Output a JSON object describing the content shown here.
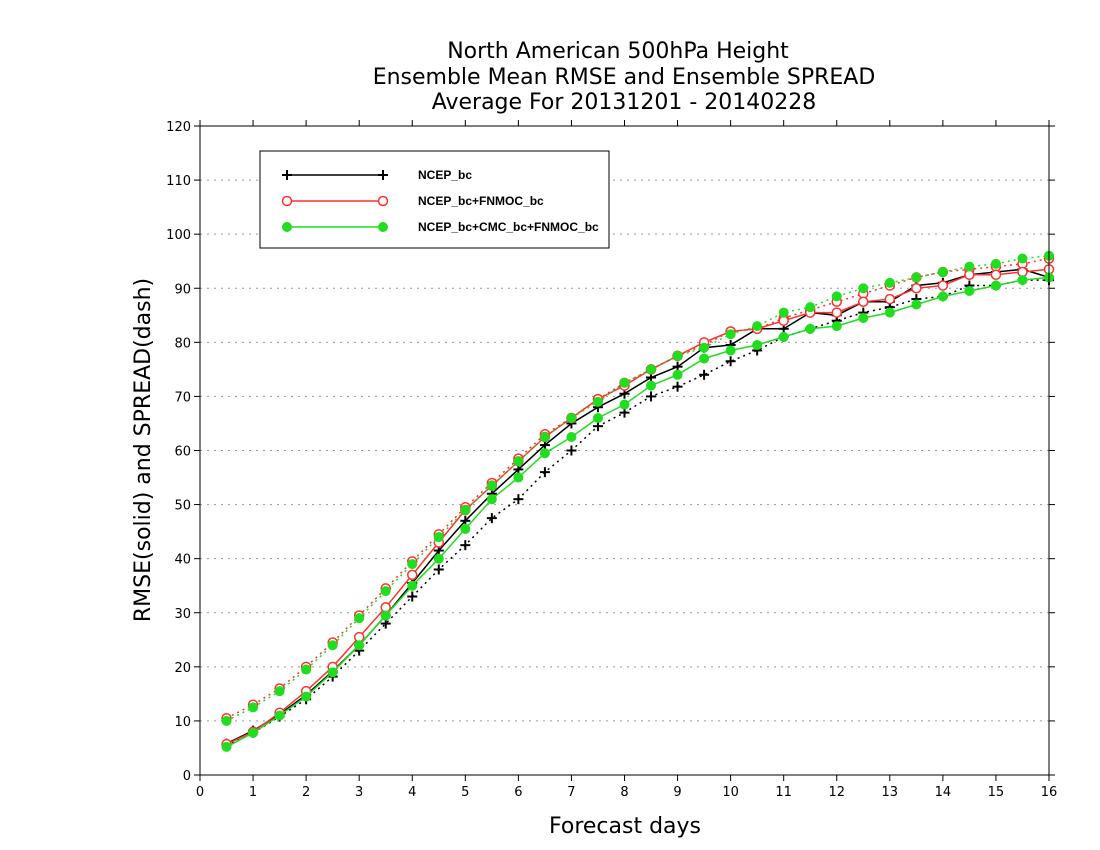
{
  "chart_data": {
    "type": "line",
    "title": [
      "North American 500hPa Height",
      "Ensemble Mean RMSE and Ensemble SPREAD",
      "Average For 20131201 - 20140228"
    ],
    "xlabel": "Forecast days",
    "ylabel": "RMSE(solid) and SPREAD(dash)",
    "xlim": [
      0,
      16
    ],
    "ylim": [
      0,
      120
    ],
    "xticks": [
      "0",
      "1",
      "2",
      "3",
      "4",
      "5",
      "6",
      "7",
      "8",
      "9",
      "10",
      "11",
      "12",
      "13",
      "14",
      "15",
      "16"
    ],
    "yticks": [
      "0",
      "10",
      "20",
      "30",
      "40",
      "50",
      "60",
      "70",
      "80",
      "90",
      "100",
      "110",
      "120"
    ],
    "grid": "horizontal dotted",
    "legend_position": "top-left",
    "x": [
      0.5,
      1,
      1.5,
      2,
      2.5,
      3,
      3.5,
      4,
      4.5,
      5,
      5.5,
      6,
      6.5,
      7,
      7.5,
      8,
      8.5,
      9,
      9.5,
      10,
      10.5,
      11,
      11.5,
      12,
      12.5,
      13,
      13.5,
      14,
      14.5,
      15,
      15.5,
      16
    ],
    "series": [
      {
        "name": "NCEP_bc",
        "color": "#000000",
        "marker": "plus",
        "rmse": [
          5.8,
          8.2,
          11.2,
          14.8,
          19.2,
          24.0,
          29.5,
          35.5,
          41.5,
          47.0,
          52.0,
          56.5,
          61.0,
          65.0,
          68.0,
          70.5,
          73.5,
          75.5,
          79.0,
          79.5,
          82.5,
          82.5,
          85.5,
          85.0,
          87.5,
          87.5,
          90.5,
          91.0,
          92.5,
          93.0,
          93.5,
          92.0
        ],
        "spread": [
          5.5,
          7.8,
          10.8,
          14.0,
          18.2,
          23.0,
          28.0,
          33.0,
          38.0,
          42.5,
          47.5,
          51.0,
          56.0,
          60.0,
          64.5,
          67.0,
          70.0,
          71.8,
          74.0,
          76.5,
          78.5,
          81.0,
          82.5,
          84.0,
          85.5,
          86.5,
          88.0,
          88.5,
          90.5,
          90.5,
          91.5,
          91.5
        ]
      },
      {
        "name": "NCEP_bc+FNMOC_bc",
        "color": "#ff3030",
        "marker": "open-circle",
        "rmse": [
          5.7,
          8.0,
          11.5,
          15.5,
          20.0,
          25.5,
          31.0,
          37.0,
          43.0,
          49.0,
          53.5,
          58.0,
          62.5,
          66.0,
          69.5,
          72.0,
          75.0,
          77.5,
          80.0,
          82.0,
          82.5,
          84.0,
          85.5,
          85.5,
          87.5,
          88.0,
          90.0,
          90.5,
          92.5,
          92.5,
          93.0,
          93.5
        ],
        "spread": [
          10.5,
          13.0,
          16.0,
          20.0,
          24.5,
          29.5,
          34.5,
          39.5,
          44.5,
          49.5,
          54.0,
          58.5,
          63.0,
          66.0,
          69.5,
          72.5,
          75.0,
          77.5,
          79.5,
          82.0,
          82.5,
          84.5,
          86.0,
          87.5,
          89.0,
          90.5,
          92.0,
          93.0,
          93.5,
          94.0,
          94.5,
          95.5
        ]
      },
      {
        "name": "NCEP_bc+CMC_bc+FNMOC_bc",
        "color": "#20dd20",
        "marker": "filled-circle",
        "rmse": [
          5.2,
          7.8,
          11.0,
          14.5,
          19.0,
          24.0,
          29.5,
          35.0,
          40.0,
          45.5,
          51.0,
          55.0,
          59.5,
          62.5,
          66.0,
          68.5,
          72.0,
          74.0,
          77.0,
          78.5,
          79.5,
          81.0,
          82.5,
          83.0,
          84.5,
          85.5,
          87.0,
          88.5,
          89.5,
          90.5,
          91.5,
          92.0
        ],
        "spread": [
          10.0,
          12.5,
          15.5,
          19.5,
          24.0,
          29.0,
          34.0,
          39.0,
          44.0,
          49.0,
          53.5,
          58.0,
          62.5,
          66.0,
          69.0,
          72.5,
          75.0,
          77.5,
          79.0,
          81.5,
          83.0,
          85.5,
          86.5,
          88.5,
          90.0,
          91.0,
          92.0,
          93.0,
          94.0,
          94.5,
          95.5,
          96.0
        ]
      }
    ]
  }
}
